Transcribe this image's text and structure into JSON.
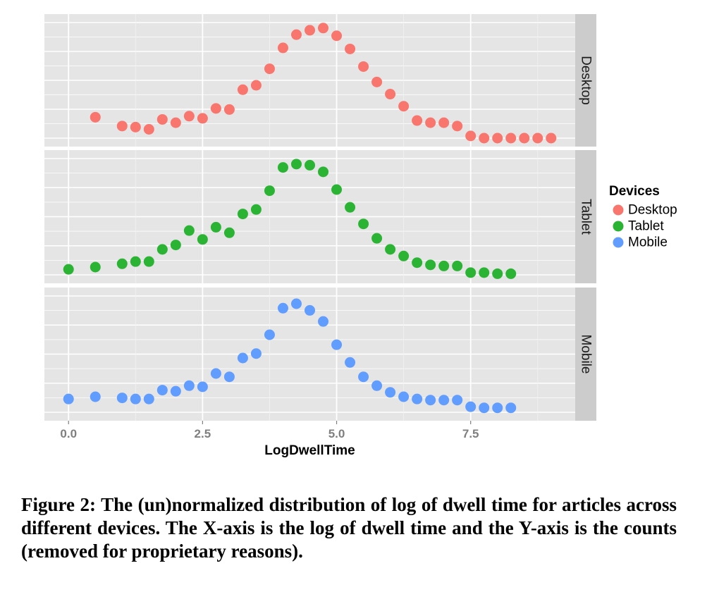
{
  "chart_data": {
    "type": "scatter",
    "xlabel": "LogDwellTime",
    "ylabel": "",
    "x_ticks": [
      "0.0",
      "2.5",
      "5.0",
      "7.5"
    ],
    "x_tick_values": [
      0,
      2.5,
      5,
      7.5
    ],
    "xlim": [
      -0.45,
      9.45
    ],
    "ylim": [
      0,
      1.05
    ],
    "grid": true,
    "y_tick_labels_shown": false,
    "facet_by": "Devices",
    "legend": {
      "title": "Devices",
      "position": "right",
      "entries": [
        "Desktop",
        "Tablet",
        "Mobile"
      ]
    },
    "colors": {
      "Desktop": "#f8766d",
      "Tablet": "#2bb334",
      "Mobile": "#619cff"
    },
    "panel_background": "#e5e5e5",
    "strip_background": "#cccccc",
    "series": [
      {
        "name": "Desktop",
        "x": [
          0.5,
          1.0,
          1.25,
          1.5,
          1.75,
          2.0,
          2.25,
          2.5,
          2.75,
          3.0,
          3.25,
          3.5,
          3.75,
          4.0,
          4.25,
          4.5,
          4.75,
          5.0,
          5.25,
          5.5,
          5.75,
          6.0,
          6.25,
          6.5,
          6.75,
          7.0,
          7.25,
          7.5,
          7.75,
          8.0,
          8.25,
          8.5,
          8.75,
          9.0
        ],
        "y": [
          0.19,
          0.11,
          0.1,
          0.08,
          0.17,
          0.14,
          0.2,
          0.18,
          0.27,
          0.26,
          0.44,
          0.48,
          0.63,
          0.82,
          0.94,
          0.98,
          1.0,
          0.93,
          0.81,
          0.65,
          0.51,
          0.4,
          0.29,
          0.16,
          0.14,
          0.14,
          0.11,
          0.02,
          0.0,
          0.0,
          0.0,
          0.0,
          0.0,
          0.0
        ]
      },
      {
        "name": "Tablet",
        "x": [
          0.0,
          0.5,
          1.0,
          1.25,
          1.5,
          1.75,
          2.0,
          2.25,
          2.5,
          2.75,
          3.0,
          3.25,
          3.5,
          3.75,
          4.0,
          4.25,
          4.5,
          4.75,
          5.0,
          5.25,
          5.5,
          5.75,
          6.0,
          6.25,
          6.5,
          6.75,
          7.0,
          7.25,
          7.5,
          7.75,
          8.0,
          8.25
        ],
        "y": [
          0.05,
          0.07,
          0.1,
          0.12,
          0.12,
          0.23,
          0.27,
          0.4,
          0.32,
          0.43,
          0.38,
          0.55,
          0.59,
          0.76,
          0.97,
          1.0,
          0.99,
          0.93,
          0.77,
          0.61,
          0.46,
          0.33,
          0.23,
          0.17,
          0.11,
          0.09,
          0.08,
          0.08,
          0.02,
          0.02,
          0.01,
          0.01
        ]
      },
      {
        "name": "Mobile",
        "x": [
          0.0,
          0.5,
          1.0,
          1.25,
          1.5,
          1.75,
          2.0,
          2.25,
          2.5,
          2.75,
          3.0,
          3.25,
          3.5,
          3.75,
          4.0,
          4.25,
          4.5,
          4.75,
          5.0,
          5.25,
          5.5,
          5.75,
          6.0,
          6.25,
          6.5,
          6.75,
          7.0,
          7.25,
          7.5,
          7.75,
          8.0,
          8.25
        ],
        "y": [
          0.12,
          0.14,
          0.13,
          0.12,
          0.12,
          0.2,
          0.19,
          0.24,
          0.23,
          0.35,
          0.32,
          0.49,
          0.53,
          0.7,
          0.94,
          0.98,
          0.92,
          0.82,
          0.61,
          0.45,
          0.32,
          0.24,
          0.18,
          0.14,
          0.12,
          0.11,
          0.11,
          0.11,
          0.05,
          0.04,
          0.04,
          0.04
        ]
      }
    ]
  },
  "caption": "Figure 2: The (un)normalized distribution of log of dwell time for articles across different devices. The X-axis is the log of dwell time and the Y-axis is the counts (removed for proprietary reasons)."
}
